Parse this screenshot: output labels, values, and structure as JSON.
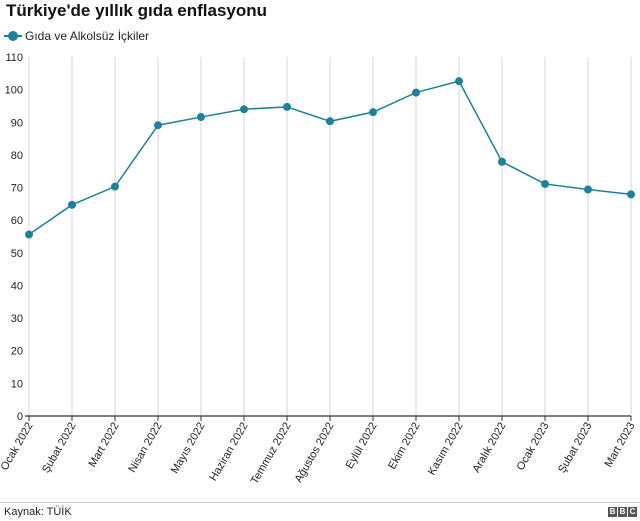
{
  "title": "Türkiye'de yıllık gıda enflasyonu",
  "source": "Kaynak: TÜİK",
  "logo": {
    "letters": [
      "B",
      "B",
      "C"
    ],
    "color": "#555555"
  },
  "colors": {
    "series": "#1d8299",
    "grid": "#d5d5d5",
    "axis": "#333333"
  },
  "chart_data": {
    "type": "line",
    "title": "Türkiye'de yıllık gıda enflasyonu",
    "xlabel": "",
    "ylabel": "",
    "ylim": [
      0,
      110
    ],
    "yticks": [
      0,
      10,
      20,
      30,
      40,
      50,
      60,
      70,
      80,
      90,
      100,
      110
    ],
    "grid": "vertical",
    "legend_position": "top-left",
    "categories": [
      "Ocak 2022",
      "Şubat 2022",
      "Mart 2022",
      "Nisan 2022",
      "Mayıs 2022",
      "Haziran 2022",
      "Temmuz 2022",
      "Ağustos 2022",
      "Eylül 2022",
      "Ekim 2022",
      "Kasım 2022",
      "Aralık 2022",
      "Ocak 2023",
      "Şubat 2023",
      "Mart 2023"
    ],
    "series": [
      {
        "name": "Gıda ve Alkolsüz İçkiler",
        "color": "#1d8299",
        "values": [
          55.6,
          64.7,
          70.3,
          89.1,
          91.6,
          94.0,
          94.7,
          90.3,
          93.1,
          99.1,
          102.6,
          77.9,
          71.1,
          69.4,
          67.9
        ]
      }
    ]
  }
}
